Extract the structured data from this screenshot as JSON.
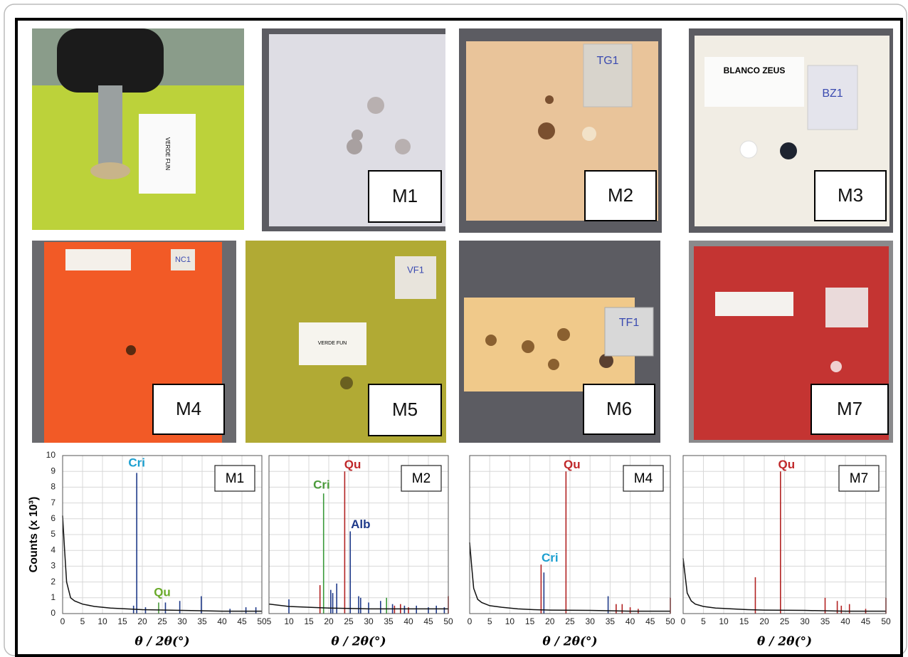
{
  "photos": {
    "labels": [
      "M1",
      "M2",
      "M3",
      "M4",
      "M5",
      "M6",
      "M7"
    ],
    "tile_texts": [
      "VERDE FUN",
      "TG1",
      "BLANCO ZEUS",
      "BZ1",
      "NC1",
      "VF1",
      "VERDE FUN",
      "TF1"
    ]
  },
  "chart_data": [
    {
      "type": "line",
      "panel_label": "M1",
      "xlabel": "θ / 2θ(°)",
      "ylabel": "Counts (x 10³)",
      "xlim": [
        0,
        50
      ],
      "xticks": [
        0,
        5,
        10,
        15,
        20,
        25,
        30,
        35,
        40,
        45,
        50
      ],
      "ylim": [
        0,
        10
      ],
      "yticks": [
        0,
        1,
        2,
        3,
        4,
        5,
        6,
        7,
        8,
        9,
        10
      ],
      "show_ytick_labels": true,
      "grid": true,
      "series": [
        {
          "style": "stem",
          "color": "#1f3a8a",
          "x": [
            17.8,
            18.6,
            20.8,
            25.8,
            29.4,
            34.8,
            42,
            46,
            48.5
          ],
          "values": [
            0.5,
            8.9,
            0.4,
            0.7,
            0.8,
            1.1,
            0.3,
            0.4,
            0.4
          ]
        },
        {
          "style": "stem",
          "color": "#4a9a3a",
          "x": [
            24.1
          ],
          "values": [
            0.7
          ]
        },
        {
          "style": "line",
          "color": "#111111",
          "x": [
            0,
            0.5,
            1,
            2,
            3,
            5,
            8,
            12,
            16,
            20,
            30,
            40,
            50
          ],
          "values": [
            6.2,
            4,
            2,
            1,
            0.8,
            0.6,
            0.45,
            0.35,
            0.3,
            0.25,
            0.2,
            0.15,
            0.15
          ]
        }
      ],
      "annotations": [
        {
          "text": "Cri",
          "x": 18.6,
          "y": 9.5,
          "color": "#1b9fd0"
        },
        {
          "text": "Qu",
          "x": 25,
          "y": 1.3,
          "color": "#6aaa2a"
        }
      ]
    },
    {
      "type": "line",
      "panel_label": "M2",
      "xlabel": "θ / 2θ(°)",
      "xlim": [
        5,
        50
      ],
      "xticks": [
        5,
        10,
        15,
        20,
        25,
        30,
        35,
        40,
        45,
        50
      ],
      "ylim": [
        0,
        10
      ],
      "yticks": [
        0,
        1,
        2,
        3,
        4,
        5,
        6,
        7,
        8,
        9,
        10
      ],
      "show_ytick_labels": false,
      "grid": true,
      "series": [
        {
          "style": "stem",
          "color": "#1f3a8a",
          "x": [
            10,
            20.5,
            21,
            22,
            25.4,
            27.5,
            28,
            30,
            33,
            36,
            39,
            42,
            45,
            47,
            49
          ],
          "values": [
            0.9,
            1.5,
            1.3,
            1.9,
            5.2,
            1.1,
            1.0,
            0.7,
            0.8,
            0.6,
            0.5,
            0.5,
            0.4,
            0.5,
            0.4
          ]
        },
        {
          "style": "stem",
          "color": "#b22222",
          "x": [
            17.8,
            24,
            36.5,
            38,
            40,
            50
          ],
          "values": [
            1.8,
            9.0,
            0.5,
            0.6,
            0.4,
            1.1
          ]
        },
        {
          "style": "stem",
          "color": "#3a9a3a",
          "x": [
            18.7,
            34.5
          ],
          "values": [
            7.6,
            1.0
          ]
        },
        {
          "style": "line",
          "color": "#111111",
          "x": [
            5,
            10,
            15,
            20,
            30,
            40,
            50
          ],
          "values": [
            0.6,
            0.45,
            0.4,
            0.35,
            0.3,
            0.3,
            0.3
          ]
        }
      ],
      "annotations": [
        {
          "text": "Cri",
          "x": 18.2,
          "y": 8.1,
          "color": "#4a9a3a"
        },
        {
          "text": "Qu",
          "x": 26,
          "y": 9.4,
          "color": "#c0282a"
        },
        {
          "text": "Alb",
          "x": 28,
          "y": 5.6,
          "color": "#1f3a8a"
        }
      ]
    },
    {
      "type": "line",
      "panel_label": "M4",
      "xlabel": "θ / 2θ(°)",
      "xlim": [
        0,
        50
      ],
      "xticks": [
        0,
        5,
        10,
        15,
        20,
        25,
        30,
        35,
        40,
        45,
        50
      ],
      "ylim": [
        0,
        10
      ],
      "yticks": [
        0,
        1,
        2,
        3,
        4,
        5,
        6,
        7,
        8,
        9,
        10
      ],
      "show_ytick_labels": false,
      "grid": true,
      "series": [
        {
          "style": "stem",
          "color": "#b22222",
          "x": [
            17.8,
            24,
            36.5,
            38,
            40,
            42,
            50
          ],
          "values": [
            3.1,
            9.0,
            0.6,
            0.6,
            0.4,
            0.3,
            1.0
          ]
        },
        {
          "style": "stem",
          "color": "#1f3a8a",
          "x": [
            18.5,
            34.5
          ],
          "values": [
            2.6,
            1.1
          ]
        },
        {
          "style": "line",
          "color": "#111111",
          "x": [
            0,
            0.5,
            1,
            2,
            3,
            5,
            8,
            12,
            16,
            20,
            30,
            40,
            50
          ],
          "values": [
            4.5,
            3,
            1.6,
            0.9,
            0.7,
            0.5,
            0.4,
            0.3,
            0.25,
            0.22,
            0.2,
            0.15,
            0.15
          ]
        }
      ],
      "annotations": [
        {
          "text": "Cri",
          "x": 20,
          "y": 3.5,
          "color": "#1b9fd0"
        },
        {
          "text": "Qu",
          "x": 25.5,
          "y": 9.4,
          "color": "#c0282a"
        }
      ]
    },
    {
      "type": "line",
      "panel_label": "M7",
      "xlabel": "θ / 2θ(°)",
      "xlim": [
        0,
        50
      ],
      "xticks": [
        0,
        5,
        10,
        15,
        20,
        25,
        30,
        35,
        40,
        45,
        50
      ],
      "ylim": [
        0,
        10
      ],
      "yticks": [
        0,
        1,
        2,
        3,
        4,
        5,
        6,
        7,
        8,
        9,
        10
      ],
      "show_ytick_labels": false,
      "grid": true,
      "series": [
        {
          "style": "stem",
          "color": "#b22222",
          "x": [
            17.8,
            24,
            35,
            38,
            39,
            41,
            45,
            50
          ],
          "values": [
            2.3,
            9.0,
            1.0,
            0.8,
            0.5,
            0.6,
            0.3,
            1.0
          ]
        },
        {
          "style": "line",
          "color": "#111111",
          "x": [
            0,
            0.5,
            1,
            2,
            3,
            5,
            8,
            12,
            16,
            20,
            30,
            40,
            50
          ],
          "values": [
            3.5,
            2.4,
            1.3,
            0.8,
            0.6,
            0.45,
            0.35,
            0.3,
            0.25,
            0.22,
            0.2,
            0.15,
            0.15
          ]
        }
      ],
      "annotations": [
        {
          "text": "Qu",
          "x": 25.5,
          "y": 9.4,
          "color": "#c0282a"
        }
      ]
    }
  ]
}
